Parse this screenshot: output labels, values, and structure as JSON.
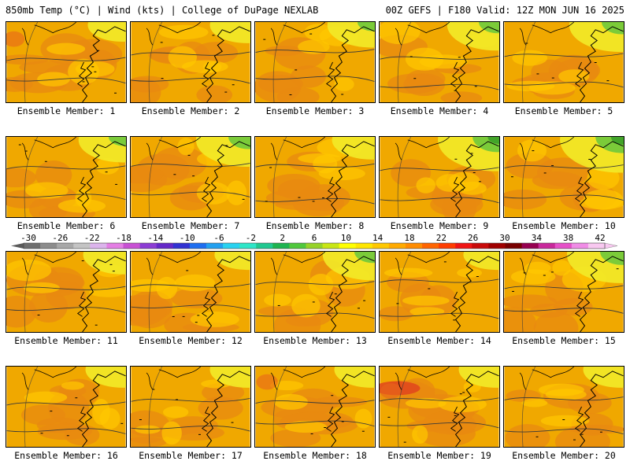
{
  "header": {
    "left": "850mb Temp (°C) | Wind (kts) | College of DuPage NEXLAB",
    "right": "00Z GEFS | F180 Valid: 12Z MON JUN 16 2025"
  },
  "panel_label_prefix": "Ensemble Member: ",
  "members": [
    {
      "id": 1,
      "label": "Ensemble Member: 1",
      "hot": 0.75,
      "cool": 0.25
    },
    {
      "id": 2,
      "label": "Ensemble Member: 2",
      "hot": 0.6,
      "cool": 0.3
    },
    {
      "id": 3,
      "label": "Ensemble Member: 3",
      "hot": 0.45,
      "cool": 0.45
    },
    {
      "id": 4,
      "label": "Ensemble Member: 4",
      "hot": 0.55,
      "cool": 0.55
    },
    {
      "id": 5,
      "label": "Ensemble Member: 5",
      "hot": 0.45,
      "cool": 0.6
    },
    {
      "id": 6,
      "label": "Ensemble Member: 6",
      "hot": 0.55,
      "cool": 0.45
    },
    {
      "id": 7,
      "label": "Ensemble Member: 7",
      "hot": 0.45,
      "cool": 0.6
    },
    {
      "id": 8,
      "label": "Ensemble Member: 8",
      "hot": 0.65,
      "cool": 0.35
    },
    {
      "id": 9,
      "label": "Ensemble Member: 9",
      "hot": 0.45,
      "cool": 0.75
    },
    {
      "id": 10,
      "label": "Ensemble Member: 10",
      "hot": 0.5,
      "cool": 0.8
    },
    {
      "id": 11,
      "label": "Ensemble Member: 11",
      "hot": 0.5,
      "cool": 0.35
    },
    {
      "id": 12,
      "label": "Ensemble Member: 12",
      "hot": 0.5,
      "cool": 0.2
    },
    {
      "id": 13,
      "label": "Ensemble Member: 13",
      "hot": 0.45,
      "cool": 0.55
    },
    {
      "id": 14,
      "label": "Ensemble Member: 14",
      "hot": 0.2,
      "cool": 0.2
    },
    {
      "id": 15,
      "label": "Ensemble Member: 15",
      "hot": 0.5,
      "cool": 0.65
    },
    {
      "id": 16,
      "label": "Ensemble Member: 16",
      "hot": 0.7,
      "cool": 0.3
    },
    {
      "id": 17,
      "label": "Ensemble Member: 17",
      "hot": 0.6,
      "cool": 0.3
    },
    {
      "id": 18,
      "label": "Ensemble Member: 18",
      "hot": 0.8,
      "cool": 0.3
    },
    {
      "id": 19,
      "label": "Ensemble Member: 19",
      "hot": 0.95,
      "cool": 0.3
    },
    {
      "id": 20,
      "label": "Ensemble Member: 20",
      "hot": 0.7,
      "cool": 0.3
    }
  ],
  "colorbar": {
    "unit": "°C",
    "tick_labels": [
      "-30",
      "-26",
      "-22",
      "-18",
      "-14",
      "-10",
      "-6",
      "-2",
      "2",
      "6",
      "10",
      "14",
      "18",
      "22",
      "26",
      "30",
      "34",
      "38",
      "42"
    ],
    "colors": [
      "#6e6e6e",
      "#8c8c8c",
      "#a8a8a8",
      "#c4c4c4",
      "#dcb4ec",
      "#e47ee4",
      "#c850d4",
      "#8c3cd4",
      "#6428c8",
      "#3232d2",
      "#1e6ef0",
      "#22a0f0",
      "#28d2f0",
      "#2ee6c8",
      "#20c890",
      "#1eb450",
      "#50c83c",
      "#96d228",
      "#c8e614",
      "#ffff00",
      "#ffe600",
      "#ffc800",
      "#ffaa00",
      "#ff8c00",
      "#ff6400",
      "#ff3c00",
      "#f01414",
      "#c80a0a",
      "#a00000",
      "#780000",
      "#960050",
      "#c8289b",
      "#e650c8",
      "#f08ce6",
      "#f8c8f0"
    ]
  },
  "palette": {
    "bg_warm": "#f0a800",
    "patch_hot": "#e88a10",
    "patch_light": "#ffc800",
    "patch_cool": "#f2ea28",
    "patch_green": "#6ec83c",
    "patch_dkgreen": "#3ca028",
    "patch_red": "#e0401e"
  }
}
